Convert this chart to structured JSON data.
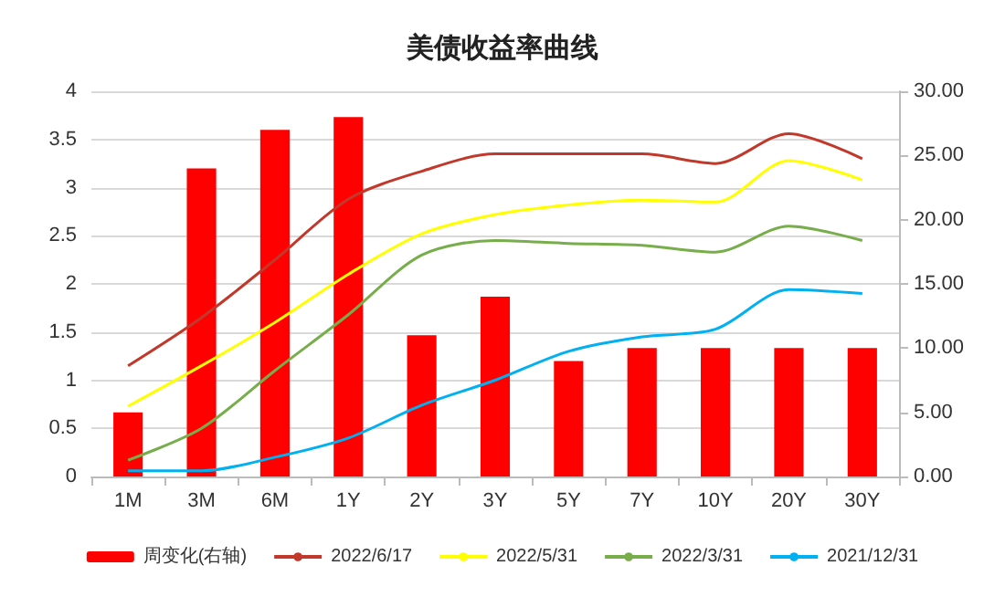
{
  "chart_data": {
    "type": "line",
    "title": "美债收益率曲线",
    "categories": [
      "1M",
      "3M",
      "6M",
      "1Y",
      "2Y",
      "3Y",
      "5Y",
      "7Y",
      "10Y",
      "20Y",
      "30Y"
    ],
    "series": [
      {
        "name": "周变化(右轴)",
        "type": "bar",
        "axis": "y2",
        "color": "#ff0000",
        "values": [
          5,
          24,
          27,
          28,
          11,
          14,
          9,
          10,
          10,
          10,
          10
        ]
      },
      {
        "name": "2022/6/17",
        "color": "#c0392b",
        "values": [
          1.15,
          1.65,
          2.25,
          2.88,
          3.17,
          3.35,
          3.35,
          3.35,
          3.25,
          3.56,
          3.3
        ]
      },
      {
        "name": "2022/5/31",
        "color": "#ffff00",
        "values": [
          0.73,
          1.15,
          1.6,
          2.1,
          2.52,
          2.72,
          2.82,
          2.87,
          2.85,
          3.28,
          3.08
        ]
      },
      {
        "name": "2022/3/31",
        "color": "#77ad4a",
        "values": [
          0.17,
          0.5,
          1.1,
          1.68,
          2.3,
          2.45,
          2.42,
          2.4,
          2.33,
          2.6,
          2.45
        ]
      },
      {
        "name": "2021/12/31",
        "color": "#00b0f0",
        "values": [
          0.06,
          0.06,
          0.2,
          0.4,
          0.74,
          1.0,
          1.3,
          1.45,
          1.53,
          1.94,
          1.9
        ]
      }
    ],
    "ylim": [
      0,
      4
    ],
    "yticks": [
      0,
      0.5,
      1,
      1.5,
      2,
      2.5,
      3,
      3.5,
      4
    ],
    "y2lim": [
      0,
      30
    ],
    "y2ticks": [
      {
        "value": 0,
        "label": "0.00"
      },
      {
        "value": 5,
        "label": "5.00"
      },
      {
        "value": 10,
        "label": "10.00"
      },
      {
        "value": 15,
        "label": "15.00"
      },
      {
        "value": 20,
        "label": "20.00"
      },
      {
        "value": 25,
        "label": "25.00"
      },
      {
        "value": 30,
        "label": "30.00"
      }
    ],
    "grid": "y",
    "legend": "bottom",
    "marker": "none",
    "line_style": "solid"
  }
}
